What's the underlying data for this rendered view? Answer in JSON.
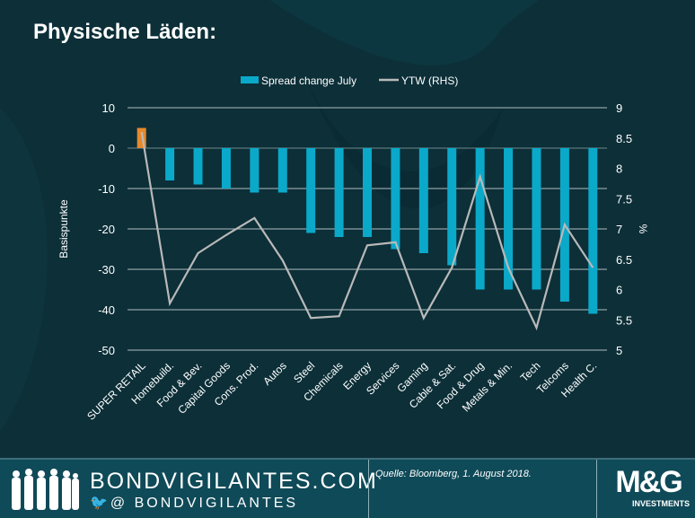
{
  "title": "Physische Läden:",
  "chart_data": {
    "type": "bar+line",
    "categories": [
      "SUPER RETAIL",
      "Homebuild.",
      "Food & Bev.",
      "Capital Goods",
      "Cons. Prod.",
      "Autos",
      "Steel",
      "Chemicals",
      "Energy",
      "Services",
      "Gaming",
      "Cable & Sat.",
      "Food & Drug",
      "Metals & Min.",
      "Tech",
      "Telcoms",
      "Health C."
    ],
    "series": [
      {
        "name": "Spread change July",
        "type": "bar",
        "axis": "left",
        "values": [
          5,
          -8,
          -9,
          -10,
          -11,
          -11,
          -21,
          -22,
          -22,
          -25,
          -26,
          -29,
          -35,
          -35,
          -35,
          -38,
          -41
        ],
        "color": "#0aa9c9",
        "highlight_color": "#e8892a"
      },
      {
        "name": "YTW (RHS)",
        "type": "line",
        "axis": "right",
        "values": [
          8.6,
          5.77,
          6.6,
          6.9,
          7.18,
          6.48,
          5.53,
          5.56,
          6.73,
          6.78,
          5.53,
          6.36,
          7.86,
          6.36,
          5.37,
          7.07,
          6.36
        ],
        "color": "#b9b9b9"
      }
    ],
    "ylabel": "Basispunkte",
    "y2label": "%",
    "ylim": [
      -50,
      10
    ],
    "y2lim": [
      5,
      9
    ],
    "yticks": [
      "10",
      "0",
      "-10",
      "-20",
      "-30",
      "-40",
      "-50"
    ],
    "y2ticks": [
      "9",
      "8.5",
      "8",
      "7.5",
      "7",
      "6.5",
      "6",
      "5.5",
      "5"
    ],
    "grid": true,
    "legend": "top"
  },
  "footer": {
    "site": "BONDVIGILANTES.COM",
    "twitter": "@ BONDVIGILANTES",
    "source": "Quelle: Bloomberg, 1. August 2018.",
    "logo_text": "M&G",
    "logo_sub": "INVESTMENTS"
  }
}
